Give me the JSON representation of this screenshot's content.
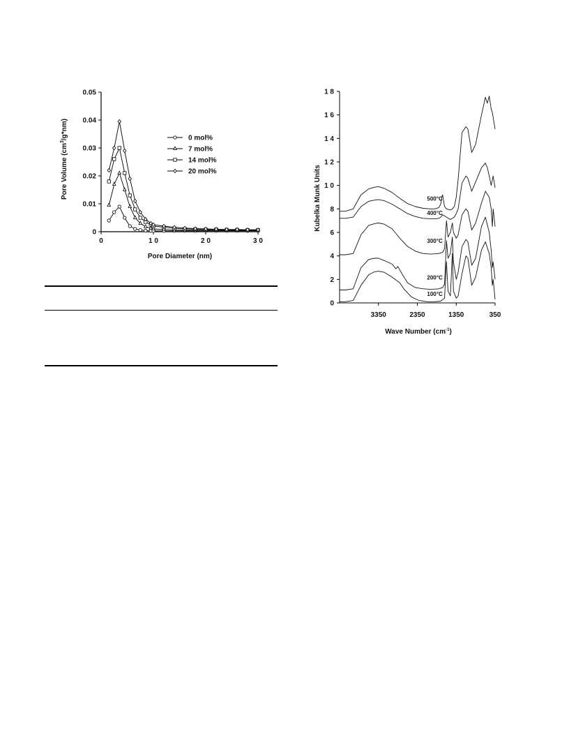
{
  "chart_data": [
    {
      "type": "line",
      "xlabel": "Pore Diameter (nm)",
      "ylabel_prefix": "Pore Volume (cm",
      "ylabel_sup": "3",
      "ylabel_suffix": "/g*nm)",
      "xlim": [
        0,
        30
      ],
      "ylim": [
        0,
        0.05
      ],
      "x_ticks": [
        "0",
        "1 0",
        "2 0",
        "3 0"
      ],
      "y_ticks": [
        "0",
        "0.01",
        "0.02",
        "0.03",
        "0.04",
        "0.05"
      ],
      "legend_position": "top-right",
      "series": [
        {
          "name": "0 mol%",
          "marker": "circle",
          "x": [
            1.5,
            2.5,
            3.5,
            4.5,
            5.5,
            6.5,
            7.5,
            8.5,
            9.5,
            10,
            12,
            14,
            16,
            18,
            20,
            22,
            24,
            26,
            28,
            30
          ],
          "y": [
            0.004,
            0.007,
            0.009,
            0.005,
            0.002,
            0.001,
            0.0006,
            0.0004,
            0.0003,
            0.0003,
            0.0003,
            0.0003,
            0.0003,
            0.0003,
            0.0003,
            0.0003,
            0.0003,
            0.0003,
            0.0003,
            0.0003
          ]
        },
        {
          "name": "7 mol%",
          "marker": "triangle",
          "x": [
            1.5,
            2.5,
            3.5,
            4.5,
            5.5,
            6.5,
            7.5,
            8.5,
            9.5,
            10,
            12,
            14,
            16,
            18,
            20,
            22,
            24,
            26,
            28,
            30
          ],
          "y": [
            0.0095,
            0.017,
            0.021,
            0.015,
            0.009,
            0.005,
            0.003,
            0.0018,
            0.0012,
            0.001,
            0.0008,
            0.0006,
            0.0005,
            0.0005,
            0.0005,
            0.0005,
            0.0005,
            0.0005,
            0.0005,
            0.0005
          ]
        },
        {
          "name": "14 mol%",
          "marker": "square",
          "x": [
            1.5,
            2.5,
            3.5,
            4.5,
            5.5,
            6.5,
            7.5,
            8.5,
            9.5,
            10,
            12,
            14,
            16,
            18,
            20,
            22,
            24,
            26,
            28,
            30
          ],
          "y": [
            0.018,
            0.026,
            0.03,
            0.021,
            0.013,
            0.008,
            0.005,
            0.0035,
            0.0025,
            0.002,
            0.0016,
            0.0012,
            0.001,
            0.0009,
            0.0008,
            0.0008,
            0.0007,
            0.0007,
            0.0006,
            0.0006
          ]
        },
        {
          "name": "20 mol%",
          "marker": "diamond",
          "x": [
            1.5,
            2.5,
            3.5,
            4.5,
            5.5,
            6.5,
            7.5,
            8.5,
            9.5,
            10,
            12,
            14,
            16,
            18,
            20,
            22,
            24,
            26,
            28,
            30
          ],
          "y": [
            0.022,
            0.03,
            0.0395,
            0.029,
            0.019,
            0.011,
            0.007,
            0.0045,
            0.003,
            0.0025,
            0.002,
            0.0016,
            0.0013,
            0.0011,
            0.001,
            0.0009,
            0.0008,
            0.0008,
            0.0007,
            0.0007
          ]
        }
      ]
    },
    {
      "type": "line",
      "xlabel_prefix": "Wave Number (cm",
      "xlabel_sup": "-1",
      "xlabel_suffix": ")",
      "ylabel": "Kubelka Munk Units",
      "xlim": [
        4350,
        350
      ],
      "ylim": [
        0,
        18
      ],
      "x_reversed": true,
      "x_ticks": [
        {
          "value": 3350,
          "label": "3350"
        },
        {
          "value": 2350,
          "label": "2350"
        },
        {
          "value": 1350,
          "label": "1350"
        },
        {
          "value": 350,
          "label": "350"
        }
      ],
      "y_ticks": [
        "0",
        "2",
        "4",
        "6",
        "8",
        "1 0",
        "1 2",
        "1 4",
        "1 6",
        "1 8"
      ],
      "series": [
        {
          "name": "100°C",
          "label_at": [
            1700,
            0.6
          ],
          "x": [
            4350,
            4200,
            4000,
            3800,
            3600,
            3450,
            3350,
            3200,
            3000,
            2800,
            2700,
            2500,
            2300,
            2100,
            1900,
            1750,
            1650,
            1600,
            1560,
            1500,
            1450,
            1420,
            1350,
            1300,
            1200,
            1100,
            1050,
            950,
            850,
            700,
            600,
            500,
            450,
            420,
            400,
            350
          ],
          "y": [
            0.1,
            0.1,
            0.2,
            1.5,
            2.4,
            2.65,
            2.7,
            2.6,
            2.2,
            1.7,
            1.2,
            0.5,
            0.2,
            0.1,
            0.1,
            0.15,
            0.4,
            3.5,
            1.0,
            0.6,
            4.2,
            1.0,
            0.4,
            0.6,
            2.5,
            4.0,
            3.8,
            1.5,
            2.2,
            4.5,
            5.2,
            4.2,
            3.0,
            1.5,
            2.0,
            0.3
          ]
        },
        {
          "name": "200°C",
          "label_at": [
            1700,
            2.0
          ],
          "x": [
            4350,
            4200,
            4000,
            3800,
            3600,
            3450,
            3350,
            3200,
            3000,
            2900,
            2850,
            2750,
            2600,
            2400,
            2200,
            2000,
            1800,
            1700,
            1650,
            1600,
            1560,
            1500,
            1450,
            1420,
            1350,
            1300,
            1200,
            1100,
            1050,
            950,
            850,
            700,
            600,
            500,
            450,
            420,
            400,
            350
          ],
          "y": [
            1.1,
            1.1,
            1.2,
            3.0,
            3.7,
            3.8,
            3.8,
            3.6,
            3.3,
            2.9,
            3.1,
            2.5,
            1.7,
            1.3,
            1.2,
            1.15,
            1.2,
            1.3,
            1.6,
            5.3,
            3.8,
            4.2,
            5.6,
            3.5,
            2.0,
            2.6,
            4.8,
            5.4,
            5.2,
            3.2,
            3.8,
            6.5,
            7.3,
            6.0,
            4.5,
            3.0,
            3.5,
            2.0
          ]
        },
        {
          "name": "300°C",
          "label_at": [
            1700,
            5.1
          ],
          "x": [
            4350,
            4200,
            4000,
            3800,
            3600,
            3450,
            3350,
            3200,
            3000,
            2800,
            2600,
            2400,
            2200,
            2000,
            1800,
            1700,
            1650,
            1600,
            1560,
            1500,
            1450,
            1420,
            1350,
            1300,
            1200,
            1100,
            1050,
            950,
            850,
            700,
            600,
            500,
            450,
            420,
            400,
            350
          ],
          "y": [
            4.1,
            4.1,
            4.2,
            5.8,
            6.6,
            6.75,
            6.8,
            6.7,
            6.3,
            5.5,
            4.8,
            4.4,
            4.2,
            4.15,
            4.2,
            4.3,
            4.6,
            7.0,
            5.6,
            6.0,
            6.8,
            6.0,
            5.5,
            5.8,
            7.5,
            8.0,
            7.8,
            6.2,
            6.8,
            8.5,
            9.5,
            9.0,
            8.0,
            6.5,
            8.0,
            6.5
          ]
        },
        {
          "name": "400°C",
          "label_at": [
            1700,
            7.5
          ],
          "x": [
            4350,
            4200,
            4000,
            3800,
            3600,
            3450,
            3350,
            3200,
            3000,
            2800,
            2600,
            2400,
            2200,
            2000,
            1900,
            1800,
            1750,
            1700,
            1650,
            1600,
            1550,
            1500,
            1450,
            1400,
            1350,
            1300,
            1200,
            1100,
            1050,
            950,
            850,
            700,
            600,
            550,
            500,
            450,
            400,
            350
          ],
          "y": [
            7.2,
            7.2,
            7.3,
            8.2,
            8.65,
            8.75,
            8.8,
            8.7,
            8.4,
            8.0,
            7.6,
            7.35,
            7.2,
            7.15,
            7.15,
            7.2,
            7.3,
            7.5,
            7.4,
            7.3,
            7.2,
            7.1,
            7.2,
            7.3,
            7.6,
            8.0,
            10.2,
            10.8,
            10.6,
            9.5,
            10.3,
            11.5,
            11.9,
            11.5,
            10.8,
            10.0,
            10.8,
            9.8
          ]
        },
        {
          "name": "500°C",
          "label_at": [
            1700,
            8.7
          ],
          "x": [
            4350,
            4200,
            4000,
            3800,
            3600,
            3450,
            3350,
            3200,
            3000,
            2800,
            2600,
            2400,
            2200,
            2000,
            1900,
            1800,
            1750,
            1720,
            1700,
            1680,
            1650,
            1600,
            1550,
            1500,
            1450,
            1400,
            1350,
            1300,
            1200,
            1100,
            1050,
            950,
            850,
            700,
            600,
            550,
            500,
            450,
            420,
            400,
            350
          ],
          "y": [
            7.8,
            7.8,
            8.0,
            9.2,
            9.7,
            9.85,
            9.9,
            9.75,
            9.4,
            8.9,
            8.45,
            8.2,
            8.05,
            8.0,
            8.0,
            8.1,
            8.4,
            9.0,
            9.2,
            8.8,
            8.2,
            8.0,
            7.95,
            7.9,
            8.0,
            8.2,
            9.0,
            10.5,
            14.5,
            15.0,
            14.8,
            12.8,
            13.5,
            16.0,
            17.5,
            17.0,
            17.6,
            16.5,
            16.2,
            15.8,
            14.8
          ]
        }
      ]
    }
  ]
}
